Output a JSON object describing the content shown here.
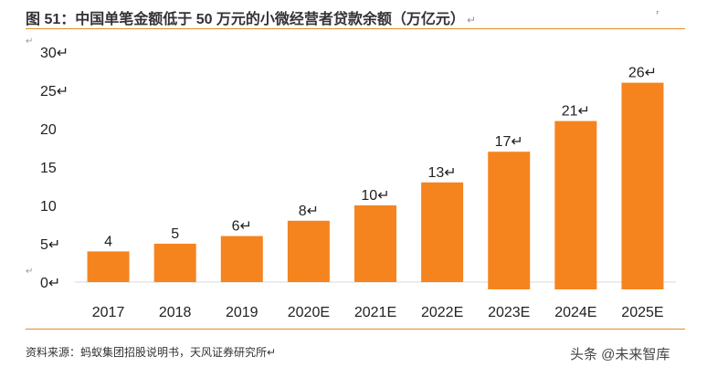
{
  "header": {
    "title": "图 51：中国单笔金额低于 50 万元的小微经营者贷款余额（万亿元）",
    "return_mark": "↵",
    "corner_mark": "⸢"
  },
  "chart_data": {
    "type": "bar",
    "title": "中国单笔金额低于 50 万元的小微经营者贷款余额（万亿元）",
    "categories": [
      "2017",
      "2018",
      "2019",
      "2020E",
      "2021E",
      "2022E",
      "2023E",
      "2024E",
      "2025E"
    ],
    "values": [
      4,
      5,
      6,
      8,
      10,
      13,
      17,
      21,
      26
    ],
    "data_labels": [
      "4",
      "5",
      "6↵",
      "8↵",
      "10↵",
      "13↵",
      "17↵",
      "21↵",
      "26↵"
    ],
    "y_ticks": [
      "0↵",
      "5↵",
      "10",
      "15",
      "20",
      "25↵",
      "30↵"
    ],
    "y_tick_values": [
      0,
      5,
      10,
      15,
      20,
      25,
      30
    ],
    "ylim": [
      0,
      30
    ],
    "xlabel": "",
    "ylabel": "",
    "grid": false,
    "legend": "none",
    "colors": {
      "bar": "#F5841F",
      "axis": "#d9d9d9",
      "text": "#222222"
    }
  },
  "footer": {
    "source": "资料来源：蚂蚁集团招股说明书，天风证券研究所↵",
    "watermark": "头条 @未来智库"
  }
}
